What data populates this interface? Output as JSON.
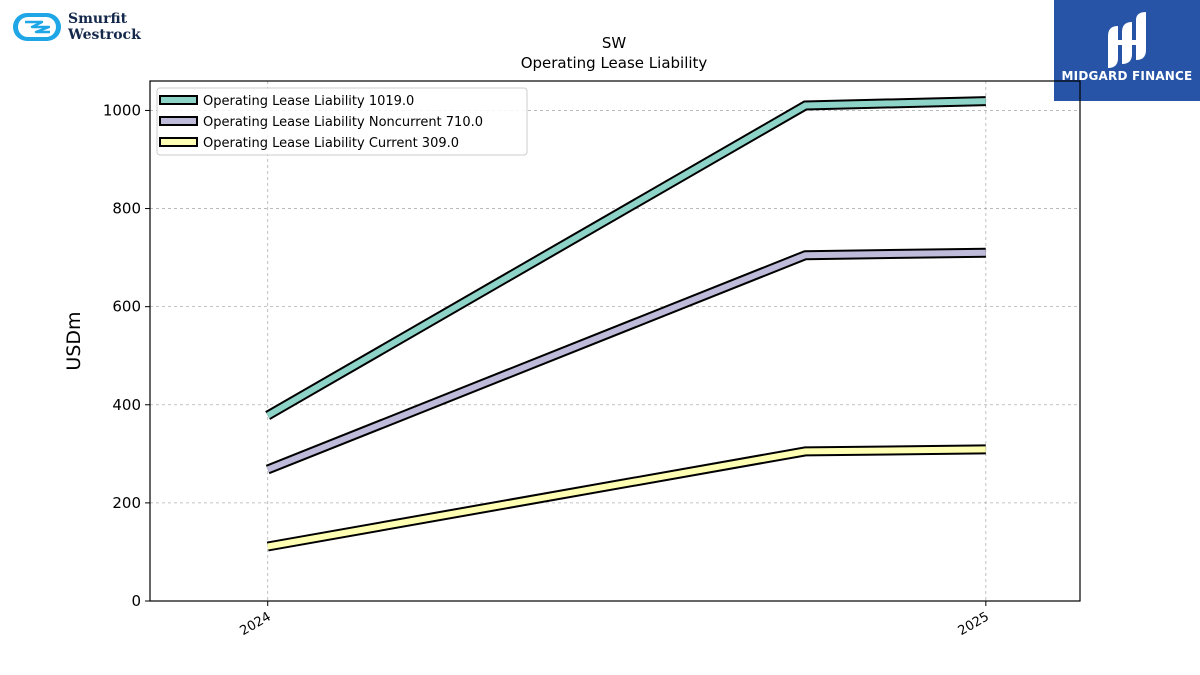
{
  "logos": {
    "left": {
      "line1": "Smurfit",
      "line2": "Westrock",
      "icon": "smurfit-westrock-logo-icon",
      "color": "#1fa6e6"
    },
    "right": {
      "name": "MIDGARD FINANCE",
      "icon": "midgard-finance-logo-icon",
      "background": "#2754a6"
    }
  },
  "chart_data": {
    "type": "line",
    "title": "SW",
    "subtitle": "Operating Lease Liability",
    "ylabel": "USDm",
    "xlabel": "",
    "ylim": [
      0,
      1060
    ],
    "yticks": [
      0,
      200,
      400,
      600,
      800,
      1000
    ],
    "xlim": [
      "2023-11-02",
      "2025-02-18"
    ],
    "xticks": [
      {
        "date": "2024-01-01",
        "label": "2024"
      },
      {
        "date": "2025-01-01",
        "label": "2025"
      }
    ],
    "grid": true,
    "legend_position": "top-left",
    "x": [
      "2024-01-01",
      "2024-10-01",
      "2025-01-01"
    ],
    "series": [
      {
        "name": "Operating Lease Liability",
        "legend": "Operating Lease Liability  1019.0",
        "color": "#8dd3c7",
        "values": [
          378,
          1010,
          1019
        ]
      },
      {
        "name": "Operating Lease Liability Noncurrent",
        "legend": "Operating Lease Liability Noncurrent  710.0",
        "color": "#bebada",
        "values": [
          268,
          705,
          710
        ]
      },
      {
        "name": "Operating Lease Liability Current",
        "legend": "Operating Lease Liability Current  309.0",
        "color": "#ffffb3",
        "values": [
          111,
          305,
          309
        ]
      }
    ]
  }
}
